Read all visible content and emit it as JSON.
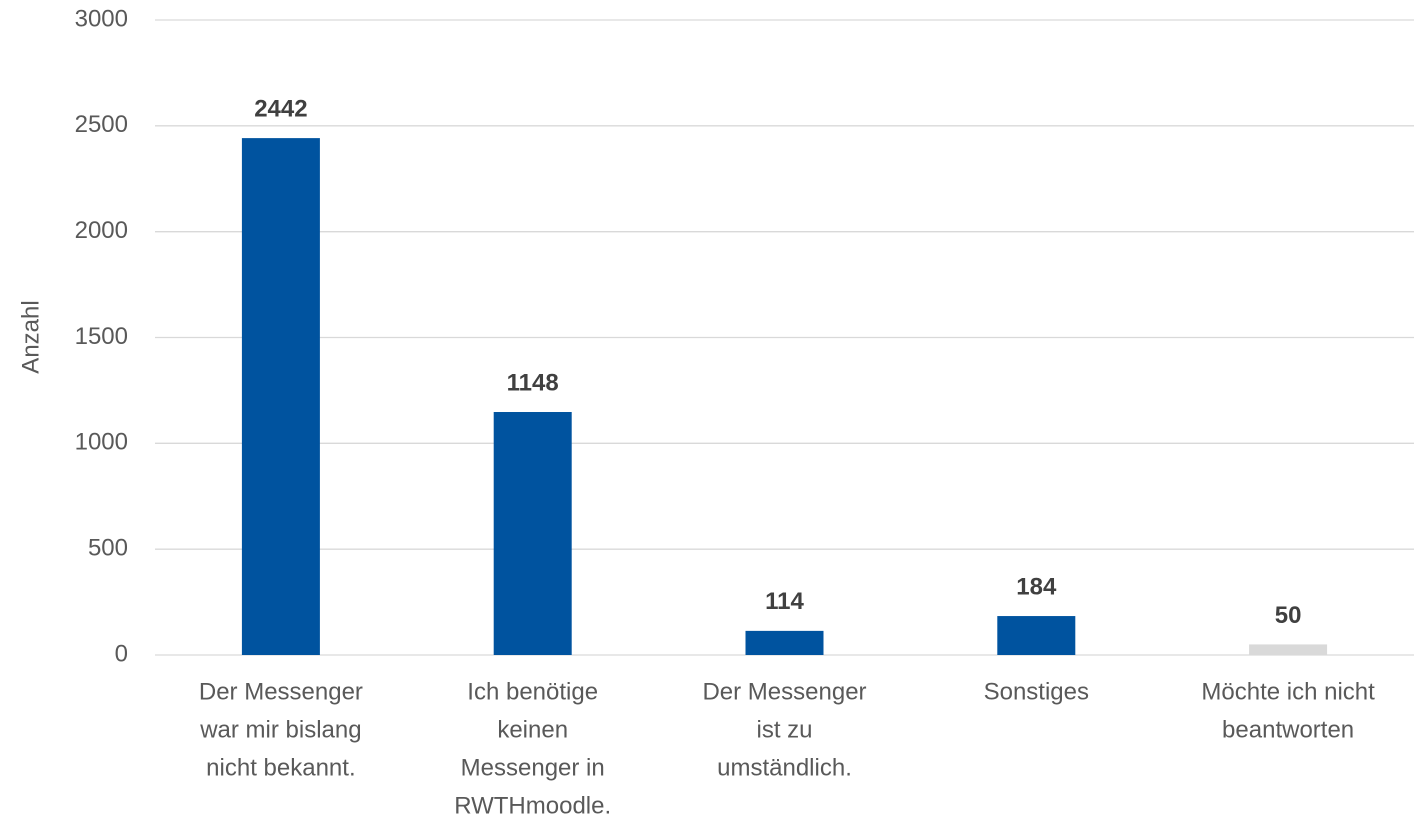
{
  "chart_data": {
    "type": "bar",
    "y_label": "Anzahl",
    "categories": [
      [
        "Der Messenger",
        "war mir bislang",
        "nicht bekannt."
      ],
      [
        "Ich benötige",
        "keinen",
        "Messenger in",
        "RWTHmoodle."
      ],
      [
        "Der Messenger",
        "ist zu",
        "umständlich."
      ],
      [
        "Sonstiges"
      ],
      [
        "Möchte ich nicht",
        "beantworten"
      ]
    ],
    "values": [
      2442,
      1148,
      114,
      184,
      50
    ],
    "colors": [
      "#00539f",
      "#00539f",
      "#00539f",
      "#00539f",
      "#d9d9d9"
    ],
    "ylim": [
      0,
      3000
    ],
    "yticks": [
      0,
      500,
      1000,
      1500,
      2000,
      2500,
      3000
    ],
    "grid": true
  }
}
